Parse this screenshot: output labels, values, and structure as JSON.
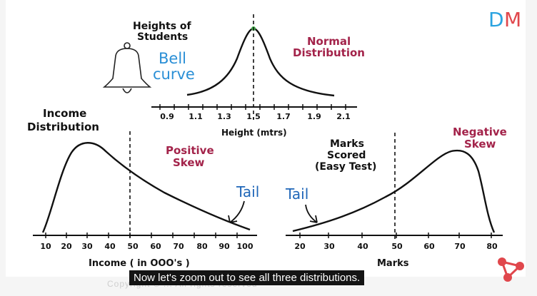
{
  "brand": {
    "logo_text": "DM",
    "logo_color_d": "#2aa3e0",
    "logo_color_m": "#e0474c"
  },
  "normal": {
    "title_line1": "Heights of",
    "title_line2": "Students",
    "bell_line1": "Bell",
    "bell_line2": "curve",
    "label_line1": "Normal",
    "label_line2": "Distribution",
    "ticks": [
      "0.9",
      "1.1",
      "1.3",
      "1.5",
      "1.7",
      "1.9",
      "2.1"
    ],
    "axis_label": "Height (mtrs)"
  },
  "positive": {
    "title_line1": "Income",
    "title_line2": "Distribution",
    "label_line1": "Positive",
    "label_line2": "Skew",
    "tail_label": "Tail",
    "ticks": [
      "10",
      "20",
      "30",
      "40",
      "50",
      "60",
      "70",
      "80",
      "90",
      "100"
    ],
    "axis_label": "Income ( in OOO's )"
  },
  "negative": {
    "title_line1": "Marks",
    "title_line2": "Scored",
    "title_line3": "(Easy Test)",
    "label_line1": "Negative",
    "label_line2": "Skew",
    "tail_label": "Tail",
    "ticks": [
      "20",
      "30",
      "40",
      "50",
      "60",
      "70",
      "80"
    ],
    "axis_label": "Marks"
  },
  "caption": "Now let's zoom out to see all three distributions.",
  "watermark": "Copyright © ... All rights reserved",
  "colors": {
    "maroon": "#a3234a",
    "blue": "#2a8fd6",
    "ink": "#111111",
    "tail_blue": "#1f66b8"
  }
}
